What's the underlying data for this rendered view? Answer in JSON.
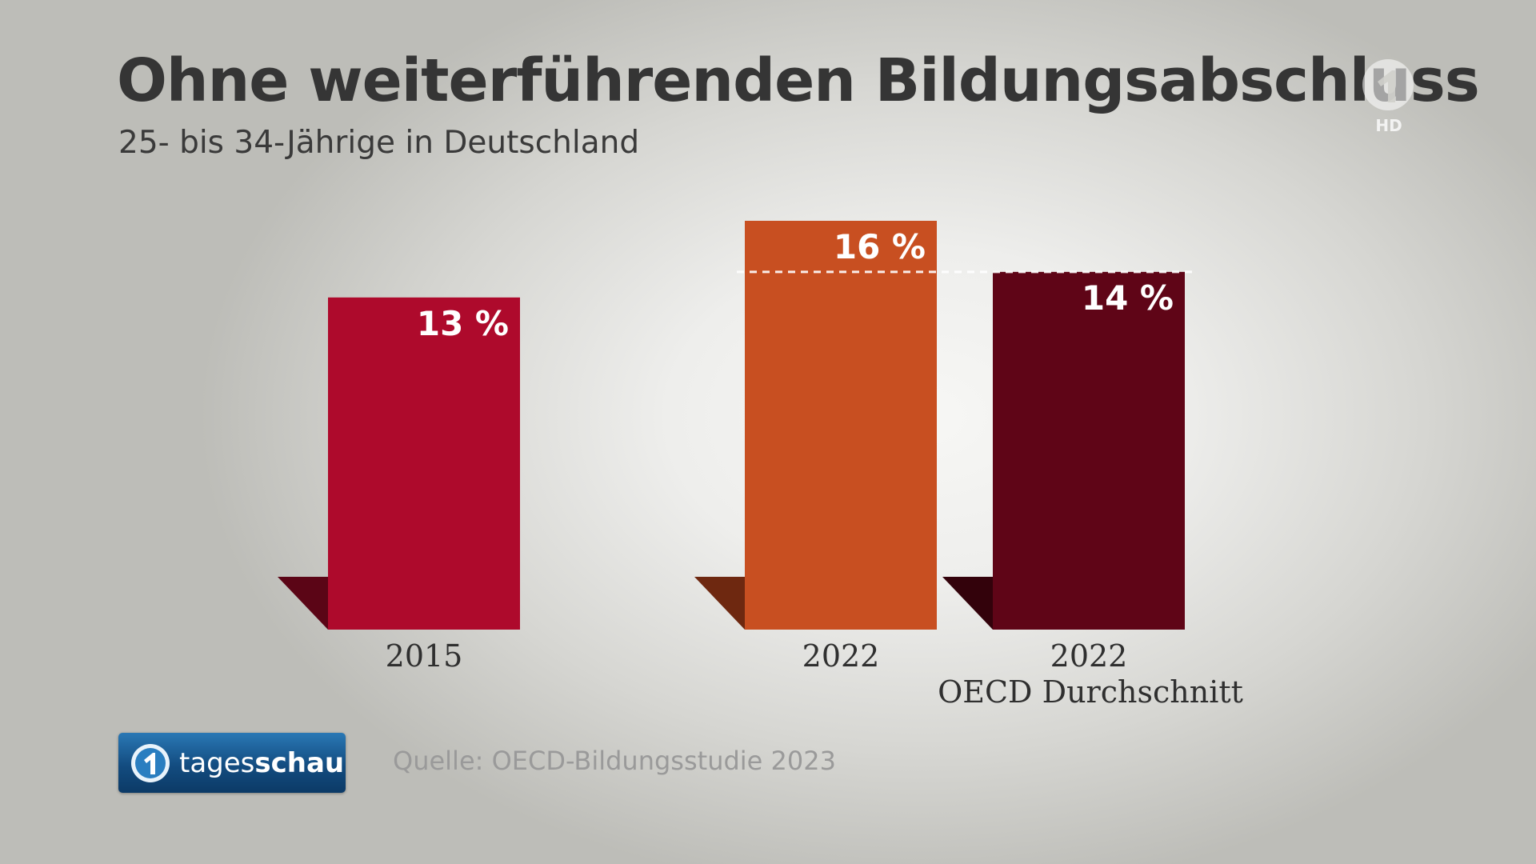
{
  "header": {
    "title": "Ohne weiterführenden Bildungsabschluss",
    "subtitle": "25- bis 34-Jährige in Deutschland"
  },
  "channel_logo": {
    "icon": "das-erste-1-logo-icon",
    "label": "HD"
  },
  "chart_data": {
    "type": "bar",
    "title": "Ohne weiterführenden Bildungsabschluss",
    "subtitle": "25- bis 34-Jährige in Deutschland",
    "unit": "%",
    "ylim": [
      0,
      16
    ],
    "grid": false,
    "reference_line": {
      "value": 14,
      "style": "dashed",
      "color": "#ffffff"
    },
    "bars": [
      {
        "category": "2015",
        "category_line2": "",
        "value": 13,
        "label": "13 %",
        "color": "#ae0a2c",
        "shadow_color": "#5b0516"
      },
      {
        "category": "2022",
        "category_line2": "",
        "value": 16,
        "label": "16 %",
        "color": "#c84f21",
        "shadow_color": "#6e2810"
      },
      {
        "category": "2022",
        "category_line2": "OECD Durchschnitt",
        "value": 14,
        "label": "14 %",
        "color": "#5f0517",
        "shadow_color": "#33020b"
      }
    ]
  },
  "footer": {
    "brand_icon": "tagesschau-1-logo-icon",
    "brand_regular": "tages",
    "brand_bold": "schau",
    "source": "Quelle: OECD-Bildungsstudie 2023"
  }
}
